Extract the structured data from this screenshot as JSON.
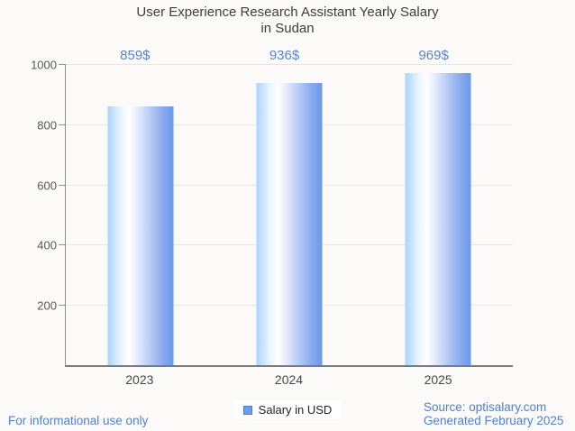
{
  "title": {
    "line1": "User Experience Research Assistant Yearly Salary",
    "line2": "in Sudan"
  },
  "chart_data": {
    "type": "bar",
    "title": "User Experience Research Assistant Yearly Salary in Sudan",
    "categories": [
      "2023",
      "2024",
      "2025"
    ],
    "series": [
      {
        "name": "Salary in USD",
        "values": [
          859,
          936,
          969
        ]
      }
    ],
    "value_labels": [
      "859$",
      "936$",
      "969$"
    ],
    "xlabel": "",
    "ylabel": "",
    "ylim": [
      0,
      1000
    ],
    "yticks": [
      200,
      400,
      600,
      800,
      1000
    ],
    "grid": true,
    "legend_position": "bottom-center"
  },
  "legend": {
    "label": "Salary in USD"
  },
  "footer": {
    "left": "For informational use only",
    "source_line": "Source: optisalary.com",
    "generated_line": "Generated February 2025"
  },
  "colors": {
    "background": "#fbfaf8",
    "title_text": "#3d3d3d",
    "value_label_blue": "#5585d2",
    "footer_blue": "#4f7fd0",
    "axis_gray": "#8f8f8f",
    "gridline_gray": "#e8e5e2",
    "tick_label_gray": "#575757",
    "bar_gradient_left": "#aad4fb",
    "bar_gradient_mid": "#ffffff",
    "bar_gradient_right": "#6b98e8",
    "legend_swatch": "#6d9eeb",
    "legend_swatch_border": "#4e7fd8"
  }
}
